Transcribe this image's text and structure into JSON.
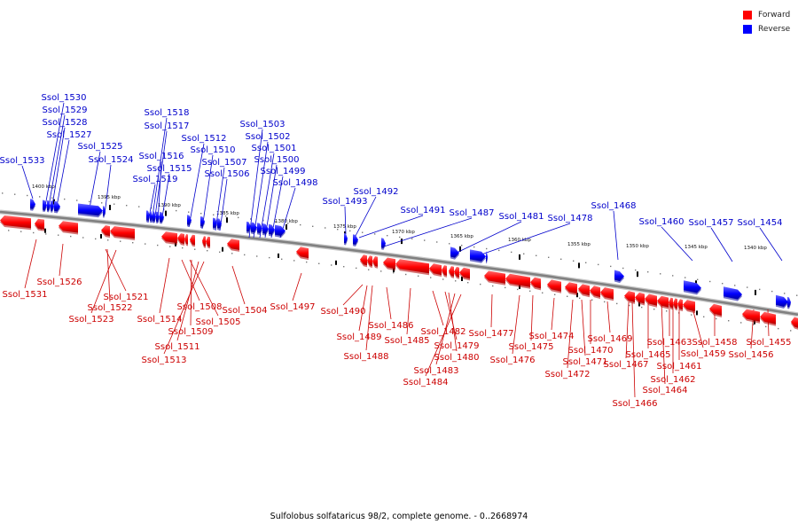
{
  "legend": {
    "forward_label": "Forward",
    "reverse_label": "Reverse",
    "forward_color": "#ff0000",
    "reverse_color": "#0000ff"
  },
  "caption": "Sulfolobus solfataricus 98/2, complete genome. - 0..2668974",
  "colors": {
    "forward": "#ff0000",
    "forward_dark": "#b00000",
    "forward_text": "#cc0000",
    "reverse": "#0000ff",
    "reverse_dark": "#0000a0",
    "reverse_text": "#0000cc",
    "backbone": "#808080"
  },
  "scale_labels": [
    "1400 kbp",
    "1395 kbp",
    "1390 kbp",
    "1385 kbp",
    "1380 kbp",
    "1375 kbp",
    "1370 kbp",
    "1365 kbp",
    "1360 kbp",
    "1355 kbp",
    "1350 kbp",
    "1345 kbp",
    "1340 kbp"
  ],
  "reverse_genes": [
    "Ssol_1533",
    "Ssol_1530",
    "Ssol_1529",
    "Ssol_1528",
    "Ssol_1527",
    "Ssol_1525",
    "Ssol_1524",
    "Ssol_1519",
    "Ssol_1518",
    "Ssol_1517",
    "Ssol_1516",
    "Ssol_1515",
    "Ssol_1512",
    "Ssol_1510",
    "Ssol_1507",
    "Ssol_1506",
    "Ssol_1503",
    "Ssol_1502",
    "Ssol_1501",
    "Ssol_1500",
    "Ssol_1499",
    "Ssol_1498",
    "Ssol_1493",
    "Ssol_1492",
    "Ssol_1491",
    "Ssol_1487",
    "Ssol_1481",
    "Ssol_1478",
    "Ssol_1468",
    "Ssol_1460",
    "Ssol_1457",
    "Ssol_1454"
  ],
  "forward_genes": [
    "Ssol_1531",
    "Ssol_1526",
    "Ssol_1521",
    "Ssol_1522",
    "Ssol_1523",
    "Ssol_1514",
    "Ssol_1508",
    "Ssol_1505",
    "Ssol_1509",
    "Ssol_1511",
    "Ssol_1513",
    "Ssol_1504",
    "Ssol_1497",
    "Ssol_1490",
    "Ssol_1489",
    "Ssol_1488",
    "Ssol_1486",
    "Ssol_1485",
    "Ssol_1482",
    "Ssol_1479",
    "Ssol_1480",
    "Ssol_1483",
    "Ssol_1484",
    "Ssol_1477",
    "Ssol_1476",
    "Ssol_1475",
    "Ssol_1474",
    "Ssol_1472",
    "Ssol_1471",
    "Ssol_1470",
    "Ssol_1469",
    "Ssol_1467",
    "Ssol_1466",
    "Ssol_1465",
    "Ssol_1464",
    "Ssol_1463",
    "Ssol_1462",
    "Ssol_1461",
    "Ssol_1459",
    "Ssol_1458",
    "Ssol_1456",
    "Ssol_1455"
  ]
}
